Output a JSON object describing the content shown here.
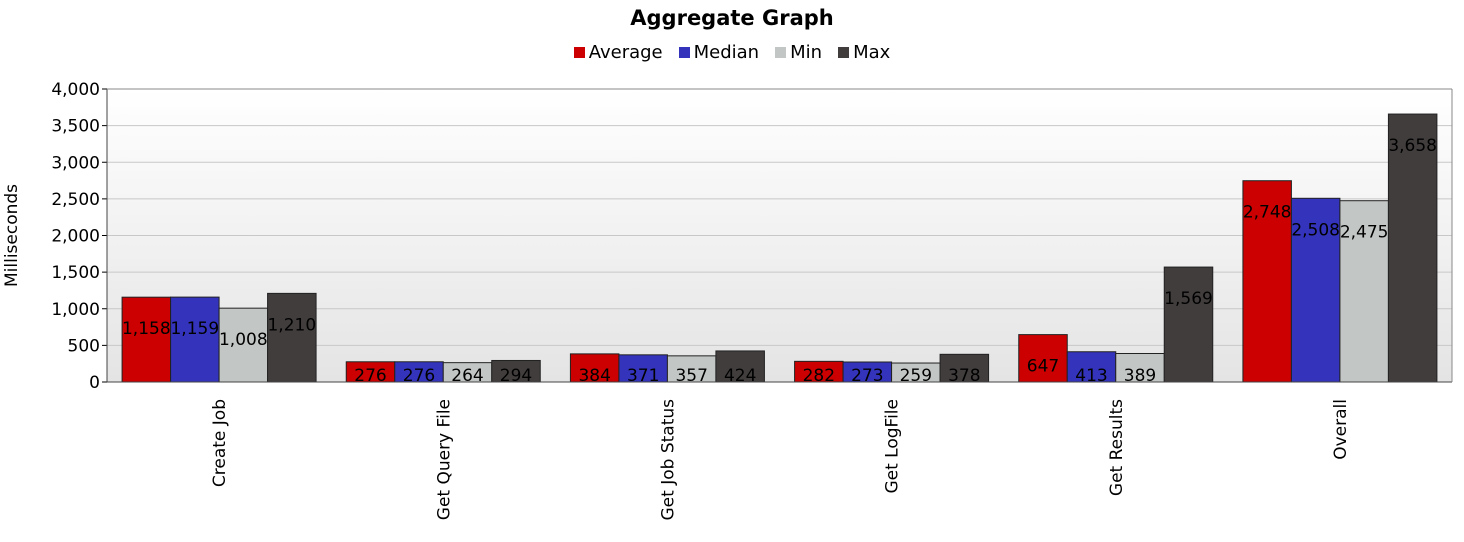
{
  "chart_data": {
    "type": "bar",
    "title": "Aggregate Graph",
    "xlabel": "",
    "ylabel": "Milliseconds",
    "ylim": [
      0,
      4000
    ],
    "yticks": [
      0,
      500,
      1000,
      1500,
      2000,
      2500,
      3000,
      3500,
      4000
    ],
    "ytick_labels": [
      "0",
      "500",
      "1,000",
      "1,500",
      "2,000",
      "2,500",
      "3,000",
      "3,500",
      "4,000"
    ],
    "grid": true,
    "legend_position": "top",
    "categories": [
      "Create Job",
      "Get Query File",
      "Get Job Status",
      "Get LogFile",
      "Get Results",
      "Overall"
    ],
    "series": [
      {
        "name": "Average",
        "color": "#cc0000",
        "values": [
          1158,
          276,
          384,
          282,
          647,
          2748
        ],
        "labels": [
          "1,158",
          "276",
          "384",
          "282",
          "647",
          "2,748"
        ]
      },
      {
        "name": "Median",
        "color": "#3333bb",
        "values": [
          1159,
          276,
          371,
          273,
          413,
          2508
        ],
        "labels": [
          "1,159",
          "276",
          "371",
          "273",
          "413",
          "2,508"
        ]
      },
      {
        "name": "Min",
        "color": "#c2c6c4",
        "values": [
          1008,
          264,
          357,
          259,
          389,
          2475
        ],
        "labels": [
          "1,008",
          "264",
          "357",
          "259",
          "389",
          "2,475"
        ]
      },
      {
        "name": "Max",
        "color": "#413d3d",
        "values": [
          1210,
          294,
          424,
          378,
          1569,
          3658
        ],
        "labels": [
          "1,210",
          "294",
          "424",
          "378",
          "1,569",
          "3,658"
        ]
      }
    ]
  }
}
